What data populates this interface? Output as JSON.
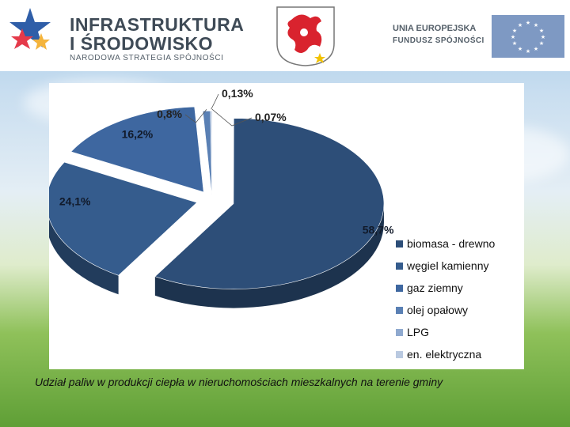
{
  "header": {
    "logo_line1": "INFRASTRUKTURA",
    "logo_line2": "I ŚRODOWISKO",
    "logo_line3": "NARODOWA STRATEGIA SPÓJNOŚCI",
    "eu_line1": "UNIA EUROPEJSKA",
    "eu_line2": "FUNDUSZ SPÓJNOŚCI"
  },
  "caption": "Udział paliw w produkcji ciepła w nieruchomościach mieszkalnych na terenie gminy",
  "chart_data": {
    "type": "pie",
    "title": "",
    "categories": [
      "biomasa - drewno",
      "węgiel kamienny",
      "gaz ziemny",
      "olej opałowy",
      "LPG",
      "en. elektryczna"
    ],
    "values": [
      58.7,
      24.1,
      16.2,
      0.8,
      0.13,
      0.07
    ],
    "data_labels": [
      "58,7%",
      "24,1%",
      "16,2%",
      "0,8%",
      "0,13%",
      "0,07%"
    ],
    "colors": [
      "#2d4e78",
      "#355c8d",
      "#3e67a0",
      "#5a80b4",
      "#8fa9cf",
      "#b9c9e0"
    ],
    "legend_position": "bottom-right",
    "exploded": true,
    "style": "3d"
  }
}
